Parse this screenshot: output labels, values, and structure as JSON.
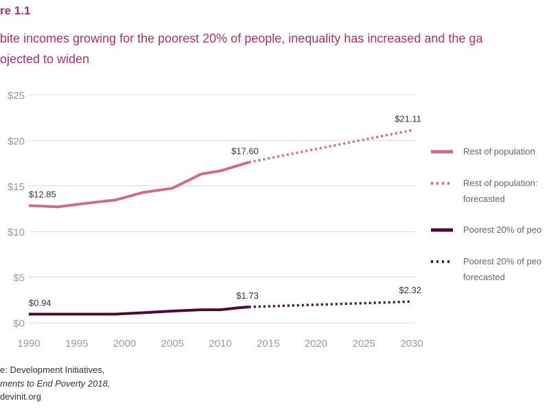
{
  "figure_label": "re 1.1",
  "subtitle_line1": "bite incomes growing for the poorest 20% of people, inequality has increased and the ga",
  "subtitle_line2": "ojected to widen",
  "source_line1": "e: Development Initiatives,",
  "source_line2": "ments to End Poverty 2018,",
  "source_line3": "devinit.org",
  "colors": {
    "rest": "#d06a92",
    "poorest": "#4a0a34",
    "grid": "#d9d9d9",
    "tick": "#9a9a9a"
  },
  "chart_data": {
    "type": "line",
    "xlim": [
      1990,
      2030
    ],
    "ylim": [
      0,
      25
    ],
    "grid": true,
    "legend_position": "right",
    "x_ticks": [
      1990,
      1995,
      2000,
      2005,
      2010,
      2015,
      2020,
      2025,
      2030
    ],
    "y_ticks": [
      {
        "value": 0,
        "label": "$0"
      },
      {
        "value": 5,
        "label": "$5"
      },
      {
        "value": 10,
        "label": "$10"
      },
      {
        "value": 15,
        "label": "$15"
      },
      {
        "value": 20,
        "label": "$20"
      },
      {
        "value": 25,
        "label": "$25"
      }
    ],
    "series": [
      {
        "name": "Rest of population",
        "style": "solid",
        "color": "#d06a92",
        "x": [
          1990,
          1993,
          1996,
          1999,
          2002,
          2005,
          2008,
          2010,
          2013
        ],
        "y": [
          12.85,
          12.7,
          13.1,
          13.45,
          14.3,
          14.75,
          16.3,
          16.65,
          17.6
        ]
      },
      {
        "name": "Rest of population: forecasted",
        "style": "dotted",
        "color": "#d06a92",
        "x": [
          2013,
          2030
        ],
        "y": [
          17.6,
          21.11
        ]
      },
      {
        "name": "Poorest 20% of peo",
        "style": "solid",
        "color": "#4a0a34",
        "x": [
          1990,
          1993,
          1996,
          1999,
          2002,
          2005,
          2008,
          2010,
          2012,
          2013
        ],
        "y": [
          0.94,
          0.94,
          0.94,
          0.94,
          1.1,
          1.28,
          1.42,
          1.42,
          1.65,
          1.73
        ]
      },
      {
        "name": "Poorest 20% of peo forecasted",
        "style": "dotted",
        "color": "#4a0a34",
        "x": [
          2013,
          2030
        ],
        "y": [
          1.73,
          2.32
        ]
      }
    ],
    "data_labels": [
      {
        "x": 1990,
        "y": 12.85,
        "text": "$12.85",
        "anchor": "start"
      },
      {
        "x": 2013,
        "y": 17.6,
        "text": "$17.60",
        "anchor": "end"
      },
      {
        "x": 2030,
        "y": 21.11,
        "text": "$21.11",
        "anchor": "end"
      },
      {
        "x": 1990,
        "y": 0.94,
        "text": "$0.94",
        "anchor": "start"
      },
      {
        "x": 2013,
        "y": 1.73,
        "text": "$1.73",
        "anchor": "end"
      },
      {
        "x": 2030,
        "y": 2.32,
        "text": "$2.32",
        "anchor": "end"
      }
    ],
    "legend": [
      {
        "style": "solid",
        "color": "#d06a92",
        "lines": [
          "Rest of population"
        ]
      },
      {
        "style": "dotted",
        "color": "#d06a92",
        "lines": [
          "Rest of population:",
          "forecasted"
        ]
      },
      {
        "style": "solid",
        "color": "#4a0a34",
        "lines": [
          "Poorest 20% of peo"
        ]
      },
      {
        "style": "dotted",
        "color": "#4a0a34",
        "lines": [
          "Poorest 20% of peo",
          "forecasted"
        ]
      }
    ]
  }
}
